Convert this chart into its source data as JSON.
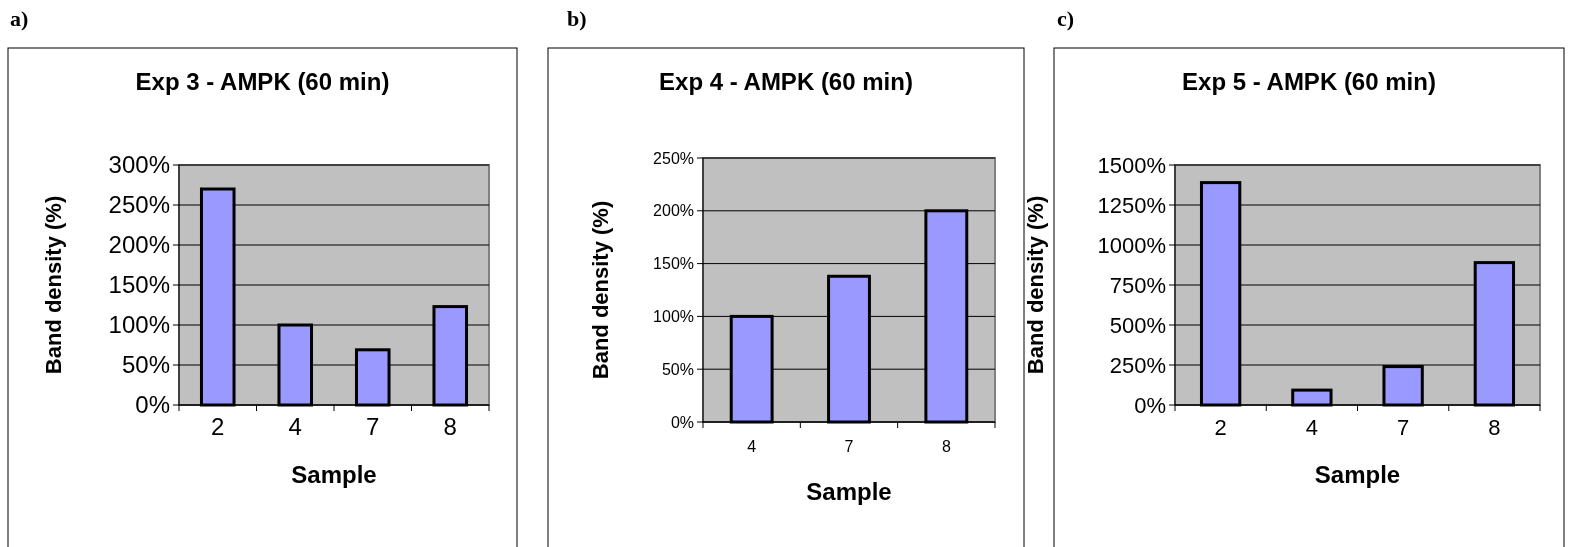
{
  "chart_data": [
    {
      "type": "bar",
      "title": "Exp 3 - AMPK (60 min)",
      "xlabel": "Sample",
      "ylabel": "Band density (%)",
      "annotations": [
        "a)"
      ],
      "categories": [
        "2",
        "4",
        "7",
        "8"
      ],
      "values": [
        270,
        100,
        69,
        123
      ],
      "color": "#9999ff",
      "ylim": [
        0,
        300
      ],
      "yticks": [
        {
          "value": 0,
          "label": "0%"
        },
        {
          "value": 50,
          "label": "50%"
        },
        {
          "value": 100,
          "label": "100%"
        },
        {
          "value": 150,
          "label": "150%"
        },
        {
          "value": 200,
          "label": "200%"
        },
        {
          "value": 250,
          "label": "250%"
        },
        {
          "value": 300,
          "label": "300%"
        }
      ],
      "grid": "y"
    },
    {
      "type": "bar",
      "title": "Exp 4 - AMPK (60 min)",
      "xlabel": "Sample",
      "ylabel": "Band density (%)",
      "annotations": [
        "b)"
      ],
      "categories": [
        "4",
        "7",
        "8"
      ],
      "values": [
        100,
        138,
        200
      ],
      "color": "#9999ff",
      "ylim": [
        0,
        250
      ],
      "yticks": [
        {
          "value": 0,
          "label": "0%"
        },
        {
          "value": 50,
          "label": "50%"
        },
        {
          "value": 100,
          "label": "100%"
        },
        {
          "value": 150,
          "label": "150%"
        },
        {
          "value": 200,
          "label": "200%"
        },
        {
          "value": 250,
          "label": "250%"
        }
      ],
      "grid": "y"
    },
    {
      "type": "bar",
      "title": "Exp 5 - AMPK (60 min)",
      "xlabel": "Sample",
      "ylabel": "Band density (%)",
      "annotations": [
        "c)"
      ],
      "categories": [
        "2",
        "4",
        "7",
        "8"
      ],
      "values": [
        1390,
        93,
        240,
        890
      ],
      "color": "#9999ff",
      "ylim": [
        0,
        1500
      ],
      "yticks": [
        {
          "value": 0,
          "label": "0%"
        },
        {
          "value": 250,
          "label": "250%"
        },
        {
          "value": 500,
          "label": "500%"
        },
        {
          "value": 750,
          "label": "750%"
        },
        {
          "value": 1000,
          "label": "1000%"
        },
        {
          "value": 1250,
          "label": "1250%"
        },
        {
          "value": 1500,
          "label": "1500%"
        }
      ],
      "grid": "y"
    }
  ]
}
